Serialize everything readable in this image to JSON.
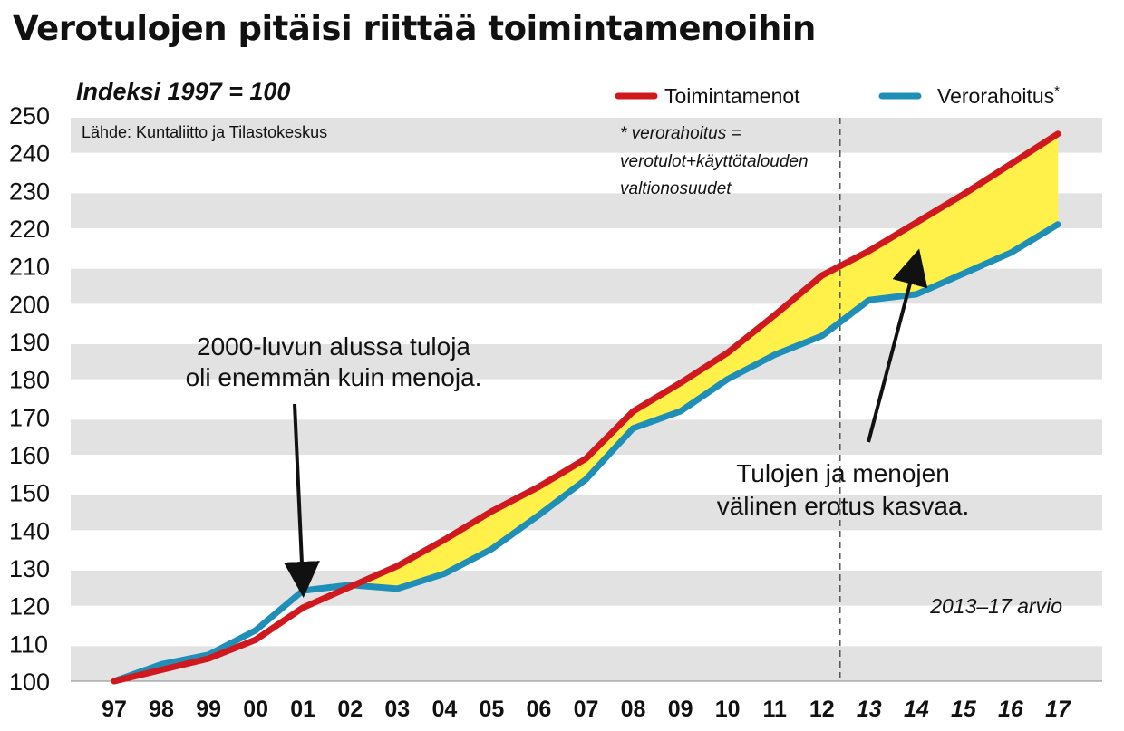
{
  "title": "Verotulojen pitäisi riittää toimintamenoihin",
  "chart_data": {
    "type": "line",
    "subtitle": "Indeksi 1997 = 100",
    "source": "Lähde: Kuntaliitto ja Tilastokeskus",
    "categories": [
      "97",
      "98",
      "99",
      "00",
      "01",
      "02",
      "03",
      "04",
      "05",
      "06",
      "07",
      "08",
      "09",
      "10",
      "11",
      "12",
      "13",
      "14",
      "15",
      "16",
      "17"
    ],
    "estimated_from_index": 16,
    "series": [
      {
        "name": "Toimintamenot",
        "color": "#d0191e",
        "values": [
          100,
          103,
          106,
          111,
          119.5,
          125,
          130.5,
          137.5,
          145,
          151.5,
          159,
          171.5,
          179,
          187,
          197,
          207.5,
          214,
          221.5,
          229,
          237,
          245
        ]
      },
      {
        "name": "Verorahoitus",
        "name_suffix": "*",
        "color": "#1f8fb8",
        "values": [
          100,
          104.5,
          107,
          113.5,
          124,
          125.5,
          124.5,
          128.5,
          135,
          144,
          153.5,
          167,
          171.5,
          180,
          186.5,
          191.5,
          201,
          202.5,
          208,
          213.5,
          221
        ]
      }
    ],
    "gap_fill_color": "#fff04a",
    "ylim": [
      100,
      250
    ],
    "yticks": [
      100,
      110,
      120,
      130,
      140,
      150,
      160,
      170,
      180,
      190,
      200,
      210,
      220,
      230,
      240,
      250
    ],
    "band_color": "#e2e2e2",
    "footnote_lines": [
      "* verorahoitus =",
      "verotulot+käyttötalouden",
      "valtionosuudet"
    ],
    "annotations": [
      {
        "lines": [
          "2000-luvun alussa tuloja",
          "oli enemmän kuin menoja."
        ]
      },
      {
        "lines": [
          "Tulojen ja menojen",
          "välinen erotus kasvaa."
        ]
      }
    ],
    "estimate_label": "2013–17 arvio"
  }
}
